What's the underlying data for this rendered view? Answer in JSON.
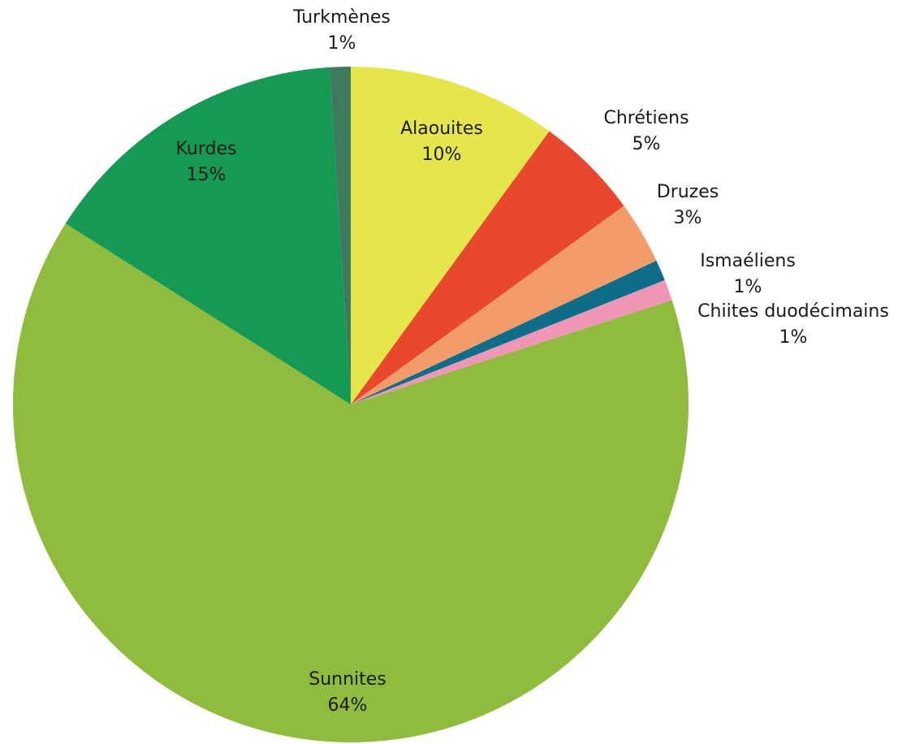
{
  "chart_data": {
    "type": "pie",
    "start_angle_deg": 0,
    "direction": "clockwise",
    "slices": [
      {
        "label": "Alaouites",
        "value": 10,
        "value_label": "10%",
        "color": "#e4e64a"
      },
      {
        "label": "Chrétiens",
        "value": 5,
        "value_label": "5%",
        "color": "#e8482c"
      },
      {
        "label": "Druzes",
        "value": 3,
        "value_label": "3%",
        "color": "#f39c6b"
      },
      {
        "label": "Ismaéliens",
        "value": 1,
        "value_label": "1%",
        "color": "#0d6e8a"
      },
      {
        "label": "Chiites duodécimains",
        "value": 1,
        "value_label": "1%",
        "color": "#ef95b5"
      },
      {
        "label": "Sunnites",
        "value": 64,
        "value_label": "64%",
        "color": "#8fbc3c"
      },
      {
        "label": "Kurdes",
        "value": 15,
        "value_label": "15%",
        "color": "#149a52"
      },
      {
        "label": "Turkmènes",
        "value": 1,
        "value_label": "1%",
        "color": "#3e7a5e"
      }
    ]
  }
}
